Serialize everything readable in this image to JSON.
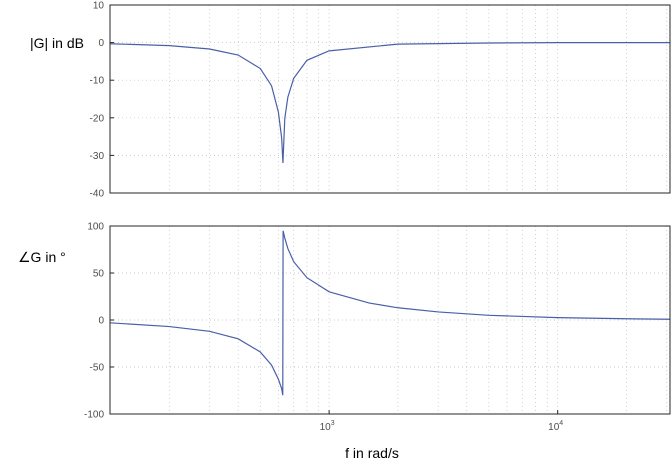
{
  "chart_data": [
    {
      "type": "line",
      "ylabel": "|G| in dB",
      "xlabel": "",
      "xscale": "log",
      "xlim": [
        110,
        31000
      ],
      "ylim": [
        -40,
        10
      ],
      "yticks": [
        "10",
        "0",
        "-10",
        "-20",
        "-30",
        "-40"
      ],
      "grid": true,
      "series": [
        {
          "color": "#4a5fa8",
          "x": [
            110,
            200,
            300,
            400,
            500,
            560,
            600,
            620,
            628,
            640,
            660,
            700,
            800,
            1000,
            2000,
            5000,
            10000,
            31000
          ],
          "y": [
            -0.3,
            -0.8,
            -1.7,
            -3.3,
            -6.9,
            -11.5,
            -18.5,
            -25.4,
            -32.0,
            -20.1,
            -14.5,
            -9.5,
            -4.7,
            -2.2,
            -0.4,
            -0.1,
            0.0,
            0.0
          ]
        }
      ]
    },
    {
      "type": "line",
      "ylabel": "∠G in °",
      "xlabel": "f in rad/s",
      "xscale": "log",
      "xlim": [
        110,
        31000
      ],
      "ylim": [
        -100,
        100
      ],
      "yticks": [
        "100",
        "50",
        "0",
        "-50",
        "-100"
      ],
      "xticks": [
        {
          "base": "10",
          "exp": "3",
          "value": 1000
        },
        {
          "base": "10",
          "exp": "4",
          "value": 10000
        }
      ],
      "grid": true,
      "series": [
        {
          "color": "#4a5fa8",
          "x": [
            110,
            200,
            300,
            400,
            500,
            560,
            600,
            620,
            627,
            629,
            640,
            660,
            700,
            800,
            1000,
            1500,
            2000,
            3000,
            5000,
            10000,
            20000,
            31000
          ],
          "y": [
            -3,
            -7,
            -12,
            -20,
            -34,
            -48,
            -63,
            -73,
            -80,
            95,
            87,
            76,
            62,
            45,
            30,
            18,
            13,
            8.6,
            5.0,
            2.5,
            1.3,
            0.8
          ]
        }
      ]
    }
  ]
}
